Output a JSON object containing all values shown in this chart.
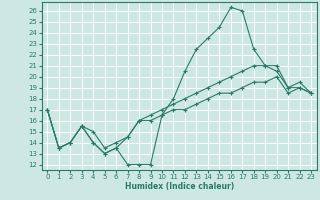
{
  "xlabel": "Humidex (Indice chaleur)",
  "bg_color": "#cde8e3",
  "grid_color": "#ffffff",
  "line_color": "#2a7a6a",
  "xlim": [
    -0.5,
    23.5
  ],
  "ylim": [
    11.5,
    26.8
  ],
  "yticks": [
    12,
    13,
    14,
    15,
    16,
    17,
    18,
    19,
    20,
    21,
    22,
    23,
    24,
    25,
    26
  ],
  "xticks": [
    0,
    1,
    2,
    3,
    4,
    5,
    6,
    7,
    8,
    9,
    10,
    11,
    12,
    13,
    14,
    15,
    16,
    17,
    18,
    19,
    20,
    21,
    22,
    23
  ],
  "lines": [
    {
      "x": [
        0,
        1,
        2,
        3,
        4,
        5,
        6,
        7,
        8,
        9,
        10,
        11,
        12,
        13,
        14,
        15,
        16,
        17,
        18,
        19,
        20,
        21,
        22,
        23
      ],
      "y": [
        17,
        13.5,
        14.0,
        15.5,
        14.0,
        13.0,
        13.5,
        12.0,
        12.0,
        12.0,
        16.5,
        18.0,
        20.5,
        22.5,
        23.5,
        24.5,
        26.3,
        26.0,
        22.5,
        21.0,
        20.5,
        19.0,
        19.0,
        18.5
      ]
    },
    {
      "x": [
        0,
        1,
        2,
        3,
        4,
        5,
        6,
        7,
        8,
        9,
        10,
        11,
        12,
        13,
        14,
        15,
        16,
        17,
        18,
        19,
        20,
        21,
        22,
        23
      ],
      "y": [
        17,
        13.5,
        14.0,
        15.5,
        15.0,
        13.5,
        14.0,
        14.5,
        16.0,
        16.5,
        17.0,
        17.5,
        18.0,
        18.5,
        19.0,
        19.5,
        20.0,
        20.5,
        21.0,
        21.0,
        21.0,
        19.0,
        19.5,
        18.5
      ]
    },
    {
      "x": [
        0,
        1,
        2,
        3,
        4,
        5,
        6,
        7,
        8,
        9,
        10,
        11,
        12,
        13,
        14,
        15,
        16,
        17,
        18,
        19,
        20,
        21,
        22,
        23
      ],
      "y": [
        17,
        13.5,
        14.0,
        15.5,
        14.0,
        13.0,
        13.5,
        14.5,
        16.0,
        16.0,
        16.5,
        17.0,
        17.0,
        17.5,
        18.0,
        18.5,
        18.5,
        19.0,
        19.5,
        19.5,
        20.0,
        18.5,
        19.0,
        18.5
      ]
    }
  ]
}
